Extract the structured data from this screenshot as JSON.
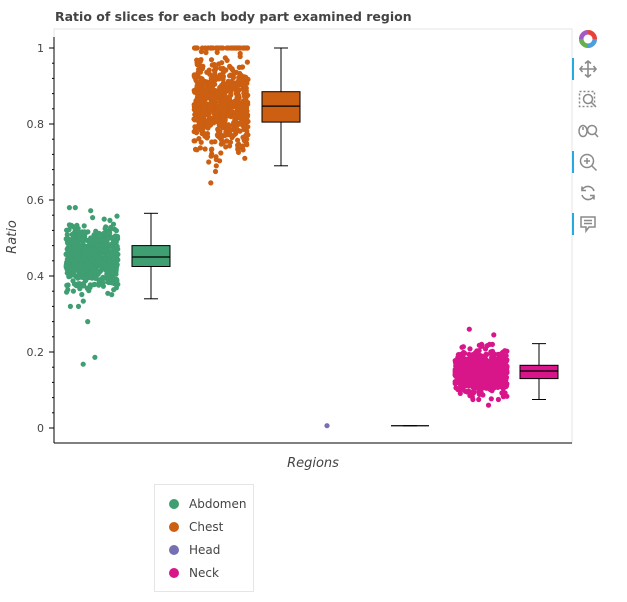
{
  "chart_data": {
    "type": "strip+box",
    "title": "Ratio of slices for each body part examined region",
    "xlabel": "Regions",
    "ylabel": "Ratio",
    "ylim": [
      -0.04,
      1.04
    ],
    "yticks": [
      "0",
      "0.2",
      "0.4",
      "0.6",
      "0.8",
      "1"
    ],
    "grid": false,
    "legend_position": "bottom-left",
    "series": [
      {
        "name": "Abdomen",
        "color": "#3f9e72",
        "points_range": [
          0.32,
          0.58
        ],
        "outliers": [
          0.28,
          0.186,
          0.168
        ],
        "box": {
          "min": 0.34,
          "q1": 0.425,
          "median": 0.45,
          "q3": 0.48,
          "max": 0.565
        }
      },
      {
        "name": "Chest",
        "color": "#cc5f11",
        "points_range": [
          0.69,
          1.0
        ],
        "outliers": [
          0.675,
          0.645
        ],
        "box": {
          "min": 0.69,
          "q1": 0.805,
          "median": 0.847,
          "q3": 0.885,
          "max": 1.0
        }
      },
      {
        "name": "Head",
        "color": "#7570b3",
        "points_range": [
          0.006,
          0.006
        ],
        "outliers": [],
        "box": {
          "min": 0.006,
          "q1": 0.006,
          "median": 0.006,
          "q3": 0.006,
          "max": 0.006
        }
      },
      {
        "name": "Neck",
        "color": "#d8168a",
        "points_range": [
          0.075,
          0.22
        ],
        "outliers": [
          0.06,
          0.245,
          0.26
        ],
        "box": {
          "min": 0.075,
          "q1": 0.13,
          "median": 0.15,
          "q3": 0.165,
          "max": 0.222
        }
      }
    ]
  },
  "toolbar": {
    "tools": [
      {
        "name": "bokeh-logo",
        "icon": "bokeh-logo-icon",
        "active": false
      },
      {
        "name": "pan",
        "icon": "move-icon",
        "active": true
      },
      {
        "name": "box-zoom",
        "icon": "box-zoom-icon",
        "active": false
      },
      {
        "name": "wheel-zoom",
        "icon": "wheel-zoom-icon",
        "active": false
      },
      {
        "name": "zoom-in",
        "icon": "zoom-in-icon",
        "active": true
      },
      {
        "name": "reset",
        "icon": "reset-icon",
        "active": false
      },
      {
        "name": "hover",
        "icon": "hover-icon",
        "active": true
      }
    ]
  }
}
